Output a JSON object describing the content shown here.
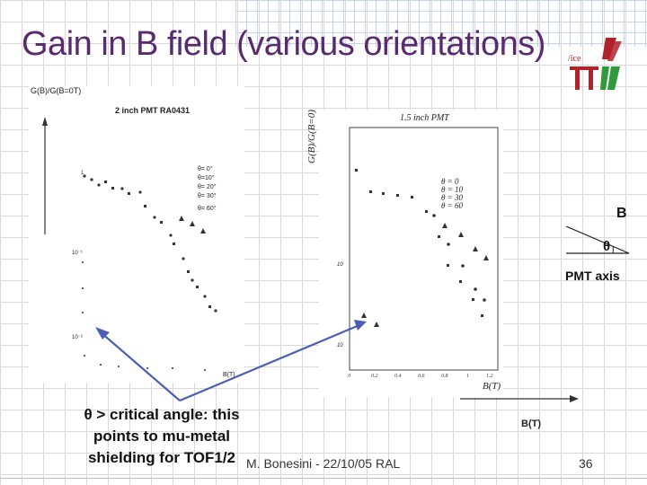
{
  "title": "Gain in B field (various orientations)",
  "left_plot": {
    "ylabel": "G(B)/G(B=0T)",
    "title": "2 inch PMT RA0431",
    "legend": [
      "θ= 0°",
      "θ=10°",
      "θ= 20°",
      "θ= 30°",
      "θ= 60°"
    ],
    "xlabel": "B(T)",
    "ytick_a": "10⁻¹",
    "ytick_b": "10⁻²"
  },
  "right_plot": {
    "title": "1.5 inch PMT",
    "ylabel": "G(B)/G(B=0)",
    "legend": [
      "θ = 0",
      "θ = 10",
      "θ = 30",
      "θ = 60"
    ],
    "xticks": [
      "0",
      "0.2",
      "0.4",
      "0.6",
      "0.8",
      "1",
      "1.2"
    ],
    "ytick_a": "10",
    "ytick_b": "10",
    "xlabel": "B(T)"
  },
  "orientation": {
    "b_label": "B",
    "theta_label": "θ",
    "axis_label": "PMT axis"
  },
  "bt_label": "B(T)",
  "note": {
    "line1": "θ > critical angle: this",
    "line2": "points to mu-metal",
    "line3": "shielding for TOF1/2"
  },
  "footer": {
    "author": "M. Bonesini - 22/10/05 RAL",
    "page": "36"
  },
  "colors": {
    "title": "#5a2a6e",
    "arrow": "#4a5fb5",
    "logo_red": "#b0232a",
    "logo_green": "#2f9a3a"
  }
}
